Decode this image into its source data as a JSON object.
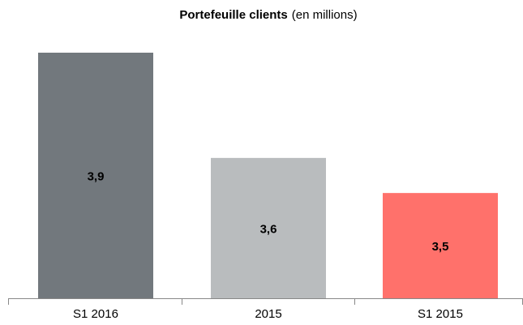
{
  "chart_data": {
    "type": "bar",
    "title": "Portefeuille clients",
    "subtitle": "(en millions)",
    "categories": [
      "S1 2016",
      "2015",
      "S1 2015"
    ],
    "values": [
      3.9,
      3.6,
      3.5
    ],
    "value_labels": [
      "3,9",
      "3,6",
      "3,5"
    ],
    "colors": [
      "#72787d",
      "#b9bcbe",
      "#ff716b"
    ],
    "ylim": [
      3.2,
      3.9
    ]
  }
}
